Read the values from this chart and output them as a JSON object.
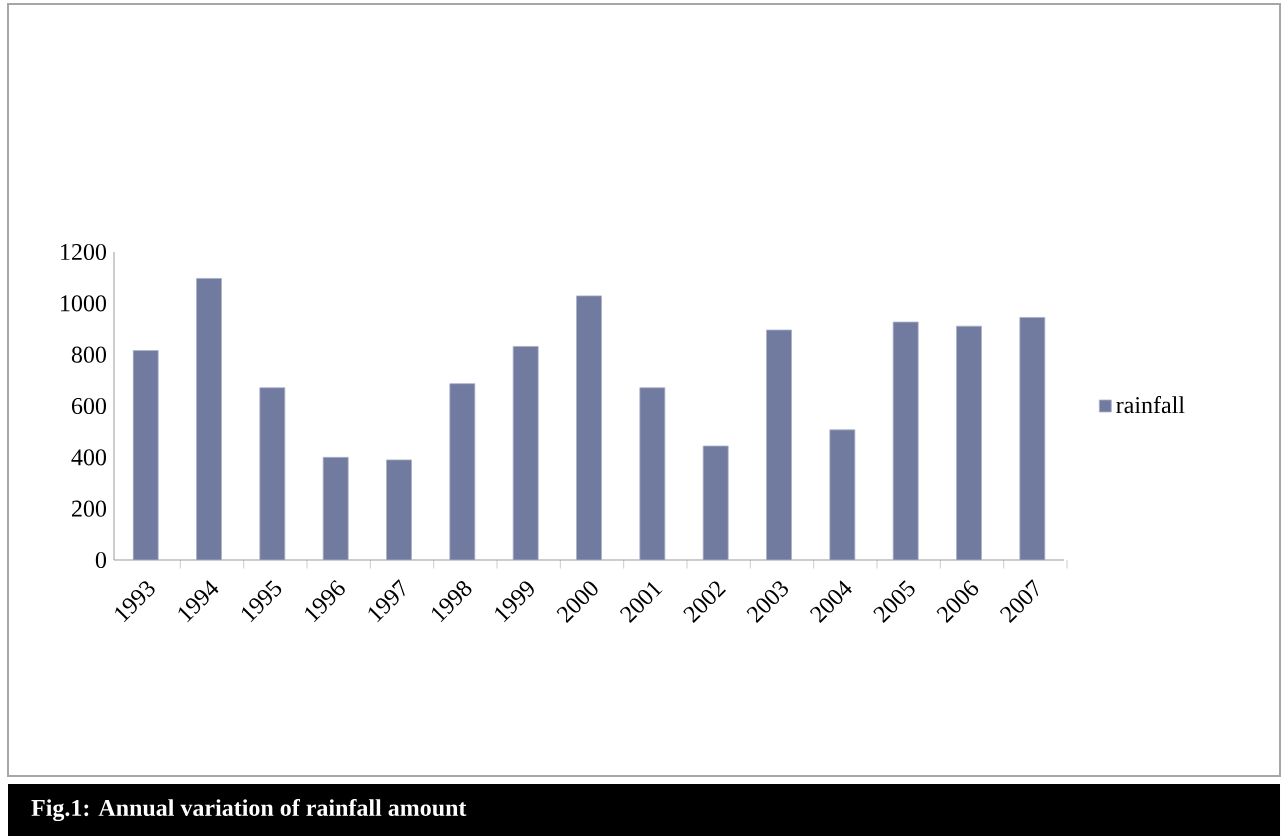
{
  "chart_data": {
    "type": "bar",
    "title": "Fig.1:  Annual variation of rainfall amount",
    "categories": [
      "1993",
      "1994",
      "1995",
      "1996",
      "1997",
      "1998",
      "1999",
      "2000",
      "2001",
      "2002",
      "2003",
      "2004",
      "2005",
      "2006",
      "2007"
    ],
    "series": [
      {
        "name": "rainfall",
        "color": "#717ba0",
        "values": [
          816,
          1097,
          671,
          400,
          390,
          687,
          832,
          1029,
          671,
          444,
          896,
          507,
          927,
          911,
          945
        ]
      }
    ],
    "ylim": [
      0,
      1200
    ],
    "yticks": [
      0,
      200,
      400,
      600,
      800,
      1000,
      1200
    ],
    "grid": false,
    "legend": "right"
  }
}
